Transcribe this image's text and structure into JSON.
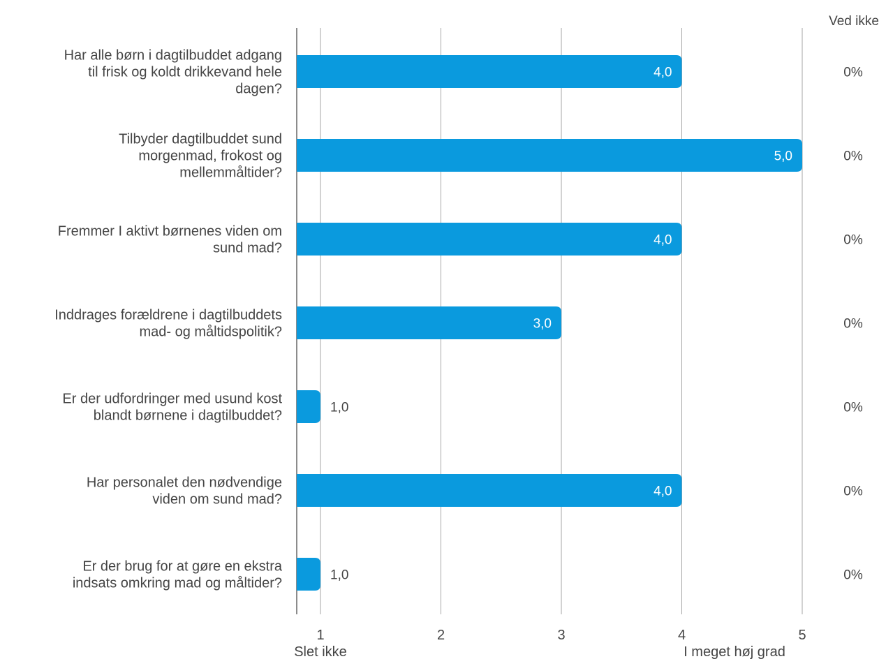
{
  "chart_data": {
    "type": "bar",
    "orientation": "horizontal",
    "categories": [
      "Har alle børn i dagtilbuddet adgang til frisk og koldt drikkevand hele dagen?",
      "Tilbyder dagtilbuddet sund morgenmad, frokost og mellemmåltider?",
      "Fremmer I aktivt børnenes viden om sund mad?",
      "Inddrages forældrene i dagtilbuddets mad- og måltidspolitik?",
      "Er der udfordringer med usund kost blandt børnene i dagtilbuddet?",
      "Har personalet den nødvendige viden om sund mad?",
      "Er der brug for at gøre en ekstra indsats omkring mad og måltider?"
    ],
    "category_lines": [
      [
        "Har alle børn i dagtilbuddet adgang",
        "til frisk og koldt drikkevand hele",
        "dagen?"
      ],
      [
        "Tilbyder dagtilbuddet sund",
        "morgenmad, frokost og",
        "mellemmåltider?"
      ],
      [
        "Fremmer I aktivt børnenes viden om",
        "sund mad?"
      ],
      [
        "Inddrages forældrene i dagtilbuddets",
        "mad- og måltidspolitik?"
      ],
      [
        "Er der udfordringer med usund kost",
        "blandt børnene i dagtilbuddet?"
      ],
      [
        "Har personalet den nødvendige",
        "viden om sund mad?"
      ],
      [
        "Er der brug for at gøre en ekstra",
        "indsats omkring mad og måltider?"
      ]
    ],
    "values": [
      4.0,
      5.0,
      4.0,
      3.0,
      1.0,
      4.0,
      1.0
    ],
    "value_labels": [
      "4,0",
      "5,0",
      "4,0",
      "3,0",
      "1,0",
      "4,0",
      "1,0"
    ],
    "ved_ikke_header": "Ved ikke",
    "ved_ikke": [
      "0%",
      "0%",
      "0%",
      "0%",
      "0%",
      "0%",
      "0%"
    ],
    "xlim": [
      0.8,
      5
    ],
    "xticks": [
      1,
      2,
      3,
      4,
      5
    ],
    "xtick_labels": [
      "1",
      "2",
      "3",
      "4",
      "5"
    ],
    "x_min_label": "Slet ikke",
    "x_max_label": "I meget høj grad",
    "bar_color": "#0a9ade",
    "grid": true
  }
}
